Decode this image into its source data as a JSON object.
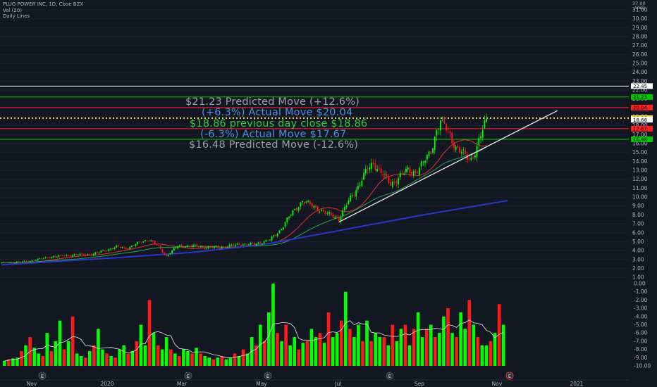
{
  "header": {
    "symbol_line": "PLUG POWER INC, 1D, Cboe BZX",
    "volume_line": "Vol (20)",
    "lines_line": "Daily Lines"
  },
  "colors": {
    "background": "#131722",
    "bull": "#00ff00",
    "bear": "#ff1a1a",
    "red_line": "#e63030",
    "green_line": "#1fa84a",
    "blue_ma": "#2a36c8",
    "white_line": "#e8e8e8",
    "yellow_dotted": "#ffe14a",
    "axis_text": "#b2b5be"
  },
  "annotations": [
    {
      "text": "$21.23  Predicted Move  (+12.6%)",
      "color": "#9aa0a6"
    },
    {
      "text": "(+6.3%)  Actual Move  $20.04",
      "color": "#4a90e2"
    },
    {
      "text": "$18.86 previous day close $18.86",
      "color": "#2ecc40"
    },
    {
      "text": "(-6.3%) Actual Move  $17.67",
      "color": "#4a90e2"
    },
    {
      "text": "$16.48  Predicted Move  (-12.6%)",
      "color": "#9aa0a6"
    }
  ],
  "chart_data": {
    "type": "candlestick",
    "title": "PLUG POWER INC, 1D, Cboe BZX",
    "price_axis": {
      "unit": "USD",
      "top_label": "37.00",
      "ticks": [
        "31.00",
        "30.00",
        "29.00",
        "28.00",
        "27.00",
        "26.00",
        "25.00",
        "24.00",
        "23.00",
        "22.00",
        "21.00",
        "20.00",
        "19.00",
        "18.00",
        "17.00",
        "16.00",
        "15.00",
        "14.00",
        "13.00",
        "12.00",
        "11.00",
        "10.00",
        "9.00",
        "8.00",
        "7.00",
        "6.00",
        "5.00",
        "4.00",
        "3.00",
        "2.00",
        "1.00"
      ],
      "ylim": [
        1,
        31
      ]
    },
    "volume_axis": {
      "ticks": [
        "0.00",
        "-1.00",
        "-2.00",
        "-3.00",
        "-4.00",
        "-5.00",
        "-6.00",
        "-7.00",
        "-8.00",
        "-9.00",
        "-10.00"
      ]
    },
    "price_badges": [
      {
        "label": "22.45",
        "value": 22.45,
        "bg": "#ffffff",
        "fg": "#000000"
      },
      {
        "label": "21.23",
        "value": 21.23,
        "bg": "#00c800",
        "fg": "#000000"
      },
      {
        "label": "20.04",
        "value": 20.04,
        "bg": "#ff2020",
        "fg": "#000000"
      },
      {
        "label": "18.86",
        "value": 18.86,
        "bg": "#ffe14a",
        "fg": "#000000"
      },
      {
        "label": "18.68",
        "value": 18.68,
        "bg": "#ffffff",
        "fg": "#000000"
      },
      {
        "label": "17.67",
        "value": 17.67,
        "bg": "#ff2020",
        "fg": "#000000"
      },
      {
        "label": "16.48",
        "value": 16.48,
        "bg": "#00c800",
        "fg": "#000000"
      }
    ],
    "horizontal_lines": [
      {
        "value": 22.45,
        "color": "#ffffff",
        "style": "solid"
      },
      {
        "value": 21.23,
        "color": "#00c800",
        "style": "solid"
      },
      {
        "value": 20.04,
        "color": "#ff2020",
        "style": "solid"
      },
      {
        "value": 18.86,
        "color": "#ffe14a",
        "style": "dotted"
      },
      {
        "value": 17.67,
        "color": "#ff2020",
        "style": "solid"
      },
      {
        "value": 16.48,
        "color": "#00c800",
        "style": "solid"
      }
    ],
    "x_axis_labels": [
      "Nov",
      "2020",
      "Mar",
      "May",
      "Jul",
      "Sep",
      "Nov",
      "2021"
    ],
    "earnings_markers": [
      "E",
      "E",
      "E",
      "E",
      "E",
      "E"
    ],
    "price_trend": [
      [
        0,
        2.6
      ],
      [
        14,
        2.8
      ],
      [
        26,
        3.3
      ],
      [
        38,
        3.5
      ],
      [
        48,
        3.6
      ],
      [
        60,
        4.4
      ],
      [
        66,
        4.3
      ],
      [
        72,
        4.9
      ],
      [
        77,
        5.3
      ],
      [
        82,
        4.4
      ],
      [
        86,
        3.4
      ],
      [
        92,
        4.5
      ],
      [
        100,
        4.5
      ],
      [
        108,
        4.3
      ],
      [
        116,
        4.4
      ],
      [
        124,
        4.7
      ],
      [
        132,
        4.7
      ],
      [
        140,
        5.2
      ],
      [
        145,
        6.2
      ],
      [
        150,
        7.8
      ],
      [
        157,
        9.6
      ],
      [
        163,
        8.9
      ],
      [
        170,
        8.1
      ],
      [
        176,
        7.6
      ],
      [
        181,
        9.5
      ],
      [
        186,
        11.2
      ],
      [
        190,
        12.8
      ],
      [
        194,
        13.8
      ],
      [
        198,
        12.8
      ],
      [
        203,
        11.4
      ],
      [
        208,
        12.4
      ],
      [
        212,
        13.0
      ],
      [
        216,
        12.8
      ],
      [
        220,
        13.8
      ],
      [
        224,
        15.2
      ],
      [
        227,
        17.5
      ],
      [
        229,
        18.5
      ],
      [
        233,
        17.5
      ],
      [
        237,
        15.5
      ],
      [
        241,
        14.8
      ],
      [
        245,
        14.3
      ],
      [
        248,
        15.5
      ],
      [
        251,
        17.5
      ],
      [
        253,
        18.7
      ]
    ],
    "trendline": {
      "from": [
        176,
        7.2
      ],
      "to": [
        290,
        19.7
      ]
    },
    "volume_levels": [
      0.6,
      0.8,
      0.9,
      1.0,
      1.8,
      2.5,
      3.5,
      2.2,
      1.5,
      1.2,
      4.0,
      1.8,
      3.0,
      5.5,
      2.0,
      3.0,
      6.0,
      1.5,
      1.2,
      1.0,
      1.8,
      2.5,
      4.5,
      2.0,
      1.5,
      1.2,
      1.0,
      2.0,
      2.5,
      1.5,
      1.8,
      3.0,
      5.0,
      2.5,
      8.0,
      4.0,
      2.5,
      2.0,
      3.5,
      2.0,
      1.5,
      1.2,
      2.0,
      1.8,
      1.5,
      2.2,
      1.5,
      1.2,
      1.0,
      0.8,
      1.0,
      1.2,
      0.8,
      1.0,
      1.5,
      1.2,
      2.0,
      1.5,
      3.5,
      2.5,
      5.0,
      3.0,
      6.5,
      10.0,
      4.0,
      3.0,
      5.0,
      2.5,
      3.5,
      2.0,
      2.8,
      3.0,
      4.5,
      3.5,
      4.0,
      2.8,
      6.5,
      3.5,
      4.0,
      5.5,
      9.0,
      4.5,
      3.5,
      5.0,
      3.0,
      5.5,
      3.0,
      4.0,
      3.5,
      3.5,
      2.5,
      5.0,
      3.0,
      4.5,
      5.0,
      2.5,
      4.5,
      6.5,
      3.5,
      4.5,
      5.0,
      3.5,
      4.0,
      6.0,
      7.0,
      4.0,
      3.5,
      6.5,
      4.5,
      8.0,
      5.0,
      3.5,
      2.5,
      2.5,
      3.0,
      4.0,
      7.5,
      5.0
    ]
  }
}
